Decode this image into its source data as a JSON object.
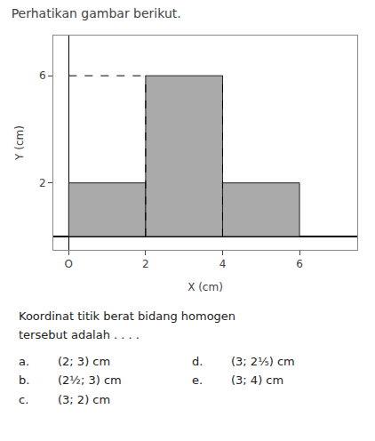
{
  "chart_data": {
    "type": "rectangles",
    "title": "Perhatikan gambar berikut.",
    "xlabel": "X (cm)",
    "ylabel": "Y (cm)",
    "rects": [
      {
        "x": 0,
        "y": 0,
        "width": 2,
        "height": 2
      },
      {
        "x": 2,
        "y": 0,
        "width": 2,
        "height": 6
      },
      {
        "x": 4,
        "y": 0,
        "width": 2,
        "height": 2
      }
    ],
    "color": "#aaaaaa",
    "edge_color": "#222222",
    "dashed_lines": [
      {
        "x": [
          0,
          2
        ],
        "y": [
          6,
          6
        ]
      },
      {
        "x": [
          2,
          2
        ],
        "y": [
          0,
          6
        ]
      },
      {
        "x": [
          4,
          4
        ],
        "y": [
          0,
          6
        ]
      }
    ],
    "line_style": "dashed",
    "xlim": [
      -0.4,
      7.5
    ],
    "ylim": [
      -0.5,
      7.5
    ],
    "xticks": [
      {
        "value": 0,
        "label": "O"
      },
      2,
      4,
      6
    ],
    "yticks": [
      2,
      6
    ],
    "grid": false,
    "annotations": {
      "question": [
        "Koordinat titik berat bidang homogen",
        "tersebut adalah . . . ."
      ],
      "options": [
        {
          "label": "a.",
          "text": "(2; 3) cm"
        },
        {
          "label": "b.",
          "text": "(2½; 3) cm"
        },
        {
          "label": "c.",
          "text": "(3; 2) cm"
        },
        {
          "label": "d.",
          "text": "(3; 2⅕) cm"
        },
        {
          "label": "e.",
          "text": "(3; 4) cm"
        }
      ]
    }
  }
}
